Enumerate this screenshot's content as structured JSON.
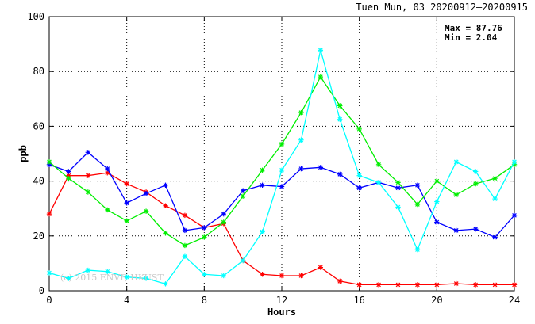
{
  "chart_data": {
    "type": "line",
    "title": "Tuen Mun, 03 20200912–20200915",
    "xlabel": "Hours",
    "ylabel": "ppb",
    "xlim": [
      0,
      24
    ],
    "ylim": [
      0,
      100
    ],
    "xticks": [
      0,
      4,
      8,
      12,
      16,
      20,
      24
    ],
    "yticks": [
      0,
      20,
      40,
      60,
      80,
      100
    ],
    "grid": true,
    "grid_style": "dotted",
    "stats": {
      "max_text": "Max = 87.76",
      "min_text": "Min =  2.04"
    },
    "watermark": "(c) 2015 ENVF, HKUST",
    "x": [
      0,
      1,
      2,
      3,
      4,
      5,
      6,
      7,
      8,
      9,
      10,
      11,
      12,
      13,
      14,
      15,
      16,
      17,
      18,
      19,
      20,
      21,
      22,
      23,
      24
    ],
    "series": [
      {
        "color": "#ff0000",
        "values": [
          28,
          42,
          42,
          43,
          39,
          36,
          31,
          27.5,
          23,
          24.5,
          11,
          6,
          5.5,
          5.5,
          8.5,
          3.5,
          2.2,
          2.2,
          2.2,
          2.2,
          2.2,
          2.6,
          2.2,
          2.2,
          2.2
        ]
      },
      {
        "color": "#0000ff",
        "values": [
          46,
          43.5,
          50.5,
          44.5,
          32,
          35.5,
          38.5,
          22,
          23,
          28,
          36.5,
          38.5,
          38,
          44.5,
          45,
          42.5,
          37.5,
          39.5,
          37.5,
          38.5,
          25,
          22,
          22.5,
          19.5,
          27.5
        ]
      },
      {
        "color": "#00ee00",
        "values": [
          47,
          41,
          36,
          29.5,
          25.5,
          29,
          21,
          16.5,
          19.5,
          25,
          34.5,
          44,
          53.5,
          65,
          78,
          67.5,
          59,
          46,
          39.5,
          31.5,
          40,
          35,
          39,
          41,
          46
        ]
      },
      {
        "color": "#00ffff",
        "values": [
          6.5,
          4.5,
          7.5,
          7,
          5,
          4.5,
          2.5,
          12.5,
          6,
          5.5,
          11,
          21.5,
          44,
          55,
          87.76,
          62.5,
          42,
          39.5,
          30.5,
          15,
          32.5,
          47,
          43.5,
          33.5,
          47
        ]
      }
    ]
  }
}
